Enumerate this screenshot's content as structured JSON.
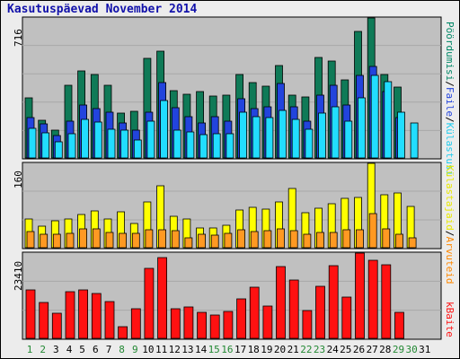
{
  "title": "Kasutuspäevad November 2014",
  "colors": {
    "visits": "#0f7a57",
    "pages": "#2244dd",
    "files": "#22ddff",
    "hits": "#ffff00",
    "sites": "#ff9922",
    "kbytes": "#ff1111",
    "weekend_label": "#228833",
    "weekday_label": "#000000",
    "title": "#1111aa",
    "panel_bg": "#c0c0c0"
  },
  "y_max": {
    "top": "716",
    "middle": "160",
    "bottom": "23410"
  },
  "right_labels": {
    "top": [
      {
        "text": "Pöördumisi",
        "color": "#008866"
      },
      {
        "text": "/",
        "color": "#000000"
      },
      {
        "text": "Faile",
        "color": "#2244dd"
      },
      {
        "text": "/",
        "color": "#000000"
      },
      {
        "text": "Külastusi",
        "color": "#22ccee"
      }
    ],
    "middle": [
      {
        "text": "Külastajaid",
        "color": "#e8e800"
      },
      {
        "text": "/",
        "color": "#000000"
      },
      {
        "text": "Arvuteid",
        "color": "#ff8800"
      }
    ],
    "bottom": [
      {
        "text": "kBaite",
        "color": "#ff1111"
      }
    ]
  },
  "chart_data": [
    {
      "type": "bar",
      "ylim": [
        0,
        716
      ],
      "categories": [
        "1",
        "2",
        "3",
        "4",
        "5",
        "6",
        "7",
        "8",
        "9",
        "10",
        "11",
        "12",
        "13",
        "14",
        "15",
        "16",
        "17",
        "18",
        "19",
        "20",
        "21",
        "22",
        "23",
        "24",
        "25",
        "26",
        "27",
        "28",
        "29",
        "30",
        "31"
      ],
      "weekend_days": [
        "1",
        "2",
        "8",
        "9",
        "15",
        "16",
        "22",
        "23",
        "29",
        "30"
      ],
      "series": [
        {
          "name": "Pöördumisi",
          "values": [
            309,
            195,
            143,
            370,
            446,
            429,
            370,
            228,
            238,
            509,
            545,
            345,
            326,
            339,
            317,
            321,
            429,
            386,
            365,
            473,
            319,
            312,
            513,
            496,
            398,
            646,
            716,
            429,
            363,
            0,
            0
          ]
        },
        {
          "name": "Faile",
          "values": [
            205,
            176,
            116,
            189,
            270,
            254,
            236,
            177,
            140,
            236,
            384,
            259,
            212,
            178,
            212,
            187,
            304,
            254,
            262,
            382,
            261,
            190,
            320,
            371,
            272,
            424,
            468,
            339,
            205,
            0,
            0
          ]
        },
        {
          "name": "Külastusi",
          "values": [
            150,
            128,
            81,
            125,
            198,
            185,
            145,
            142,
            94,
            188,
            294,
            142,
            135,
            118,
            124,
            122,
            233,
            213,
            205,
            244,
            198,
            148,
            228,
            262,
            186,
            308,
            423,
            390,
            233,
            178,
            0
          ]
        }
      ]
    },
    {
      "type": "bar",
      "ylim": [
        0,
        160
      ],
      "categories": [
        "1",
        "2",
        "3",
        "4",
        "5",
        "6",
        "7",
        "8",
        "9",
        "10",
        "11",
        "12",
        "13",
        "14",
        "15",
        "16",
        "17",
        "18",
        "19",
        "20",
        "21",
        "22",
        "23",
        "24",
        "25",
        "26",
        "27",
        "28",
        "29",
        "30",
        "31"
      ],
      "series": [
        {
          "name": "Külastajaid",
          "values": [
            54,
            41,
            51,
            55,
            63,
            69,
            55,
            68,
            46,
            86,
            117,
            60,
            54,
            37,
            38,
            42,
            72,
            77,
            74,
            86,
            112,
            66,
            75,
            83,
            93,
            96,
            160,
            100,
            104,
            79,
            0
          ]
        },
        {
          "name": "Arvuteid",
          "values": [
            31,
            25,
            25,
            27,
            35,
            35,
            29,
            27,
            27,
            34,
            34,
            32,
            19,
            26,
            24,
            27,
            34,
            30,
            32,
            36,
            32,
            26,
            29,
            29,
            34,
            34,
            65,
            35,
            26,
            19,
            0
          ]
        }
      ]
    },
    {
      "type": "bar",
      "ylim": [
        0,
        23410
      ],
      "categories": [
        "1",
        "2",
        "3",
        "4",
        "5",
        "6",
        "7",
        "8",
        "9",
        "10",
        "11",
        "12",
        "13",
        "14",
        "15",
        "16",
        "17",
        "18",
        "19",
        "20",
        "21",
        "22",
        "23",
        "24",
        "25",
        "26",
        "27",
        "28",
        "29",
        "30",
        "31"
      ],
      "series": [
        {
          "name": "kBaite",
          "values": [
            13200,
            9800,
            6900,
            12800,
            13200,
            12400,
            10200,
            3100,
            8200,
            19300,
            22200,
            8200,
            8600,
            7200,
            6400,
            7500,
            10800,
            14000,
            8800,
            19600,
            16000,
            7600,
            14200,
            19900,
            11300,
            23410,
            21400,
            20100,
            7200,
            0,
            0
          ]
        }
      ]
    }
  ]
}
